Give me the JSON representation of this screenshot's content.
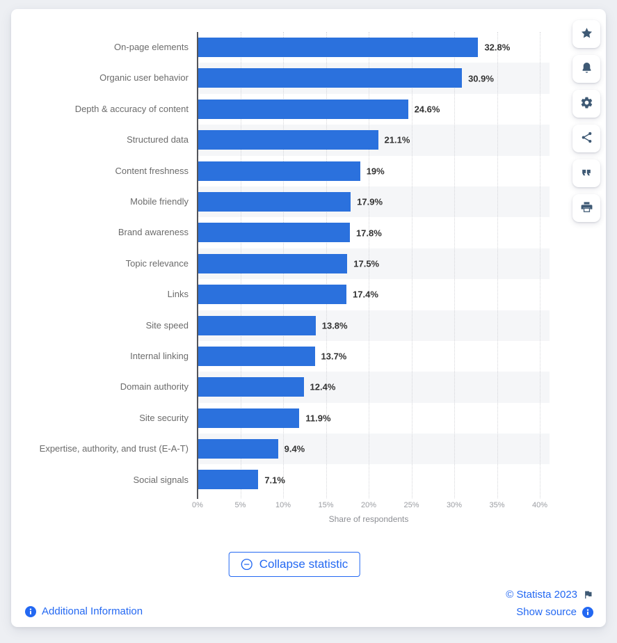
{
  "chart_data": {
    "type": "bar",
    "orientation": "horizontal",
    "categories": [
      "On-page elements",
      "Organic user behavior",
      "Depth & accuracy of content",
      "Structured data",
      "Content freshness",
      "Mobile friendly",
      "Brand awareness",
      "Topic relevance",
      "Links",
      "Site speed",
      "Internal linking",
      "Domain authority",
      "Site security",
      "Expertise, authority, and trust (E-A-T)",
      "Social signals"
    ],
    "values": [
      32.8,
      30.9,
      24.6,
      21.1,
      19,
      17.9,
      17.8,
      17.5,
      17.4,
      13.8,
      13.7,
      12.4,
      11.9,
      9.4,
      7.1
    ],
    "value_labels": [
      "32.8%",
      "30.9%",
      "24.6%",
      "21.1%",
      "19%",
      "17.9%",
      "17.8%",
      "17.5%",
      "17.4%",
      "13.8%",
      "13.7%",
      "12.4%",
      "11.9%",
      "9.4%",
      "7.1%"
    ],
    "xlabel": "Share of respondents",
    "x_ticks": [
      "0%",
      "5%",
      "10%",
      "15%",
      "20%",
      "25%",
      "30%",
      "35%",
      "40%"
    ],
    "xlim": [
      0,
      40
    ],
    "grid": "vertical-dotted",
    "legend": "none",
    "row_banding": "alternate"
  },
  "toolbar": {
    "buttons": [
      {
        "name": "favorite",
        "icon": "star-icon"
      },
      {
        "name": "alerts",
        "icon": "bell-icon"
      },
      {
        "name": "settings",
        "icon": "gear-icon"
      },
      {
        "name": "share",
        "icon": "share-icon"
      },
      {
        "name": "cite",
        "icon": "quote-icon"
      },
      {
        "name": "print",
        "icon": "printer-icon"
      }
    ]
  },
  "actions": {
    "collapse_label": "Collapse statistic"
  },
  "footer": {
    "copyright": "© Statista 2023",
    "show_source": "Show source",
    "additional_info": "Additional Information"
  },
  "colors": {
    "bar": "#2b71dd",
    "band": "#f5f6f8",
    "link": "#2368f2",
    "icon": "#3e5974",
    "axis": "#54555a"
  }
}
